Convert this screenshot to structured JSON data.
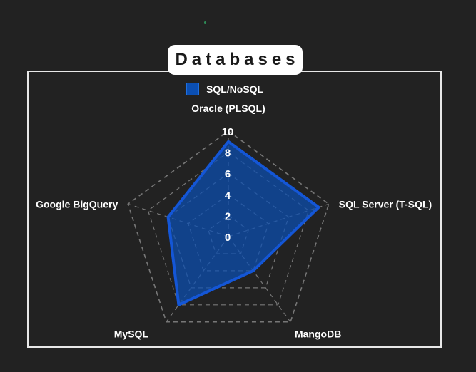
{
  "chart_data": {
    "type": "radar",
    "title": "Databases",
    "categories": [
      "Oracle (PLSQL)",
      "SQL Server (T-SQL)",
      "MangoDB",
      "MySQL",
      "Google BigQuery"
    ],
    "series": [
      {
        "name": "SQL/NoSQL",
        "values": [
          9,
          9,
          4,
          8,
          6
        ]
      }
    ],
    "rlim": [
      0,
      10
    ],
    "ticks": [
      "0",
      "2",
      "4",
      "6",
      "8",
      "10"
    ],
    "tick_values": [
      0,
      2,
      4,
      6,
      8,
      10
    ],
    "grid": true,
    "legend_position": "top",
    "colors": {
      "series_fill": "#0b4fb3",
      "series_stroke": "#1456d6",
      "grid": "#777777",
      "background": "#222222",
      "frame": "#e8e8e8"
    }
  }
}
